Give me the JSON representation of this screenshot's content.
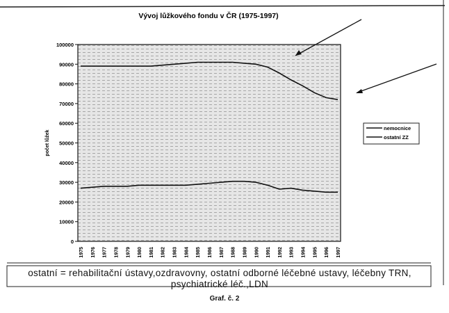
{
  "chart_data": {
    "type": "line",
    "title": "Vývoj lůžkového fondu v ČR (1975-1997)",
    "xlabel": "",
    "ylabel": "počet lůžek",
    "ylim": [
      0,
      100000
    ],
    "yticks": [
      0,
      10000,
      20000,
      30000,
      40000,
      50000,
      60000,
      70000,
      80000,
      90000,
      100000
    ],
    "categories": [
      "1975",
      "1976",
      "1977",
      "1978",
      "1979",
      "1980",
      "1981",
      "1982",
      "1983",
      "1984",
      "1985",
      "1986",
      "1987",
      "1988",
      "1989",
      "1990",
      "1991",
      "1992",
      "1993",
      "1994",
      "1995",
      "1996",
      "1997"
    ],
    "series": [
      {
        "name": "nemocnice",
        "values": [
          89000,
          89000,
          89000,
          89000,
          89000,
          89000,
          89000,
          89500,
          90000,
          90500,
          91000,
          91000,
          91000,
          91000,
          90500,
          90000,
          88500,
          85500,
          82000,
          79000,
          75500,
          73000,
          72000
        ]
      },
      {
        "name": "ostatní ZZ",
        "values": [
          27000,
          27500,
          28000,
          28000,
          28000,
          28500,
          28500,
          28500,
          28500,
          28500,
          29000,
          29500,
          30000,
          30500,
          30500,
          30000,
          28500,
          26500,
          27000,
          26000,
          25500,
          25000,
          25000
        ]
      }
    ],
    "legend_position": "right",
    "grid": false,
    "line_color": "#111111",
    "note": "ostatní = rehabilitační ústavy,ozdravovny, ostatní odborné léčebné ustavy, léčebny TRN, psychiatrické léč.,LDN",
    "caption": "Graf. č. 2"
  }
}
